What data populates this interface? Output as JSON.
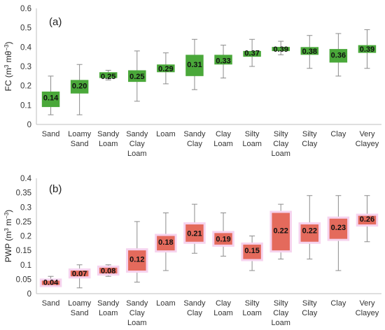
{
  "chart_data": [
    {
      "type": "box",
      "panel_label": "(a)",
      "ylabel_main": "FC (m",
      "ylabel_sup1": "3",
      "ylabel_mid": " mθ",
      "ylabel_sup2": "−3",
      "ylabel_end": ")",
      "ylim": [
        0,
        0.6
      ],
      "yticks": [
        "0",
        "0.1",
        "0.2",
        "0.3",
        "0.4",
        "0.5",
        "0.6"
      ],
      "categories": [
        [
          "Sand"
        ],
        [
          "Loamy",
          "Sand"
        ],
        [
          "Sandy",
          "Loam"
        ],
        [
          "Sandy",
          "Clay",
          "Loam"
        ],
        [
          "Loam"
        ],
        [
          "Sandy",
          "Clay"
        ],
        [
          "Clay",
          "Loam"
        ],
        [
          "Silty",
          "Loam"
        ],
        [
          "Silty",
          "Clay",
          "Loam"
        ],
        [
          "Silty",
          "Clay"
        ],
        [
          "Clay"
        ],
        [
          "Very",
          "Clayey"
        ]
      ],
      "box_color": "#4aa83a",
      "series": [
        {
          "label": "0.14",
          "mean": 0.14,
          "q1": 0.09,
          "q3": 0.17,
          "min": 0.05,
          "max": 0.25
        },
        {
          "label": "0.20",
          "mean": 0.2,
          "q1": 0.16,
          "q3": 0.23,
          "min": 0.05,
          "max": 0.31
        },
        {
          "label": "0.25",
          "mean": 0.25,
          "q1": 0.24,
          "q3": 0.27,
          "min": 0.23,
          "max": 0.28
        },
        {
          "label": "0.25",
          "mean": 0.25,
          "q1": 0.22,
          "q3": 0.28,
          "min": 0.12,
          "max": 0.38
        },
        {
          "label": "0.29",
          "mean": 0.29,
          "q1": 0.27,
          "q3": 0.31,
          "min": 0.21,
          "max": 0.37
        },
        {
          "label": "0.31",
          "mean": 0.31,
          "q1": 0.25,
          "q3": 0.36,
          "min": 0.18,
          "max": 0.44
        },
        {
          "label": "0.33",
          "mean": 0.33,
          "q1": 0.31,
          "q3": 0.36,
          "min": 0.24,
          "max": 0.41
        },
        {
          "label": "0.37",
          "mean": 0.37,
          "q1": 0.35,
          "q3": 0.38,
          "min": 0.3,
          "max": 0.44
        },
        {
          "label": "0.39",
          "mean": 0.39,
          "q1": 0.38,
          "q3": 0.4,
          "min": 0.36,
          "max": 0.43
        },
        {
          "label": "0.38",
          "mean": 0.38,
          "q1": 0.36,
          "q3": 0.4,
          "min": 0.29,
          "max": 0.46
        },
        {
          "label": "0.36",
          "mean": 0.36,
          "q1": 0.32,
          "q3": 0.39,
          "min": 0.25,
          "max": 0.47
        },
        {
          "label": "0.39",
          "mean": 0.39,
          "q1": 0.37,
          "q3": 0.41,
          "min": 0.29,
          "max": 0.49
        }
      ]
    },
    {
      "type": "box",
      "panel_label": "(b)",
      "ylabel_main": "PWP (m",
      "ylabel_sup1": "3",
      "ylabel_mid": " m",
      "ylabel_sup2": "−3",
      "ylabel_end": ")",
      "ylim": [
        0,
        0.4
      ],
      "yticks": [
        "0",
        "0.05",
        "0.1",
        "0.15",
        "0.2",
        "0.25",
        "0.3",
        "0.35",
        "0.4"
      ],
      "categories": [
        [
          "Sand"
        ],
        [
          "Loamy",
          "Sand"
        ],
        [
          "Sandy",
          "Loam"
        ],
        [
          "Sandy",
          "Clay",
          "Loam"
        ],
        [
          "Loam"
        ],
        [
          "Sandy",
          "Clay"
        ],
        [
          "Clay",
          "Loam"
        ],
        [
          "Silty",
          "Loam"
        ],
        [
          "Silty",
          "Clay",
          "Loam"
        ],
        [
          "Silty",
          "Clay"
        ],
        [
          "Clay"
        ],
        [
          "Very",
          "Clayey"
        ]
      ],
      "box_color": "#e46a5c",
      "series": [
        {
          "label": "0.04",
          "mean": 0.04,
          "q1": 0.03,
          "q3": 0.045,
          "min": 0.025,
          "max": 0.06
        },
        {
          "label": "0.07",
          "mean": 0.07,
          "q1": 0.06,
          "q3": 0.08,
          "min": 0.02,
          "max": 0.1
        },
        {
          "label": "0.08",
          "mean": 0.08,
          "q1": 0.07,
          "q3": 0.09,
          "min": 0.06,
          "max": 0.1
        },
        {
          "label": "0.12",
          "mean": 0.12,
          "q1": 0.08,
          "q3": 0.15,
          "min": 0.04,
          "max": 0.25
        },
        {
          "label": "0.18",
          "mean": 0.18,
          "q1": 0.15,
          "q3": 0.2,
          "min": 0.08,
          "max": 0.28
        },
        {
          "label": "0.21",
          "mean": 0.21,
          "q1": 0.18,
          "q3": 0.24,
          "min": 0.14,
          "max": 0.31
        },
        {
          "label": "0.19",
          "mean": 0.19,
          "q1": 0.17,
          "q3": 0.21,
          "min": 0.13,
          "max": 0.28
        },
        {
          "label": "0.15",
          "mean": 0.15,
          "q1": 0.12,
          "q3": 0.17,
          "min": 0.08,
          "max": 0.2
        },
        {
          "label": "0.22",
          "mean": 0.22,
          "q1": 0.15,
          "q3": 0.28,
          "min": 0.12,
          "max": 0.31
        },
        {
          "label": "0.22",
          "mean": 0.22,
          "q1": 0.18,
          "q3": 0.24,
          "min": 0.12,
          "max": 0.34
        },
        {
          "label": "0.23",
          "mean": 0.23,
          "q1": 0.19,
          "q3": 0.26,
          "min": 0.08,
          "max": 0.34
        },
        {
          "label": "0.26",
          "mean": 0.26,
          "q1": 0.24,
          "q3": 0.27,
          "min": 0.18,
          "max": 0.34
        }
      ]
    }
  ]
}
